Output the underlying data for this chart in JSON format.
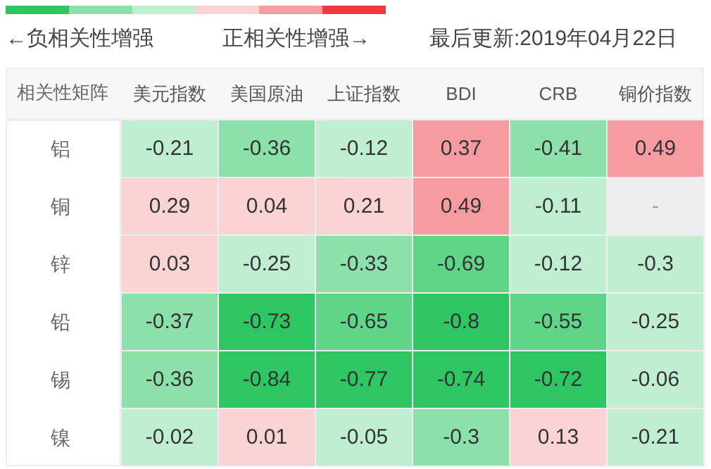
{
  "chart_data": {
    "type": "heatmap",
    "ylabel": "相关性矩阵",
    "annotations": [
      "←负相关性增强",
      "正相关性增强→",
      "最后更新:2019年04月22日",
      "-"
    ],
    "categories": [
      "美元指数",
      "美国原油",
      "上证指数",
      "BDI",
      "CRB",
      "铜价指数"
    ],
    "y_categories": [
      "铝",
      "铜",
      "锌",
      "铅",
      "锡",
      "镍"
    ],
    "cells": [
      [
        -0.21,
        -0.36,
        -0.12,
        0.37,
        -0.41,
        0.49
      ],
      [
        0.29,
        0.04,
        0.21,
        0.49,
        -0.11,
        null
      ],
      [
        0.03,
        -0.25,
        -0.33,
        -0.69,
        -0.12,
        -0.3
      ],
      [
        -0.37,
        -0.73,
        -0.65,
        -0.8,
        -0.55,
        -0.25
      ],
      [
        -0.36,
        -0.84,
        -0.77,
        -0.74,
        -0.72,
        -0.06
      ],
      [
        -0.02,
        0.01,
        -0.05,
        -0.3,
        0.13,
        -0.21
      ]
    ],
    "data_labels": true,
    "colors": [
      [
        "#c0eed0",
        "#8ce0a9",
        "#c0eed0",
        "#f69ca0",
        "#8ce0a9",
        "#f69ca0"
      ],
      [
        "#fad3d4",
        "#fad3d4",
        "#fad3d4",
        "#f69ca0",
        "#c0eed0",
        "#eeeeee"
      ],
      [
        "#fad3d4",
        "#c0eed0",
        "#8ce0a9",
        "#5fd587",
        "#c0eed0",
        "#c0eed0"
      ],
      [
        "#8ce0a9",
        "#2dc662",
        "#5fd587",
        "#2dc662",
        "#5fd587",
        "#c0eed0"
      ],
      [
        "#8ce0a9",
        "#2dc662",
        "#2dc662",
        "#2dc662",
        "#2dc662",
        "#c0eed0"
      ],
      [
        "#c0eed0",
        "#fad3d4",
        "#c0eed0",
        "#8ce0a9",
        "#fad3d4",
        "#c0eed0"
      ]
    ]
  }
}
